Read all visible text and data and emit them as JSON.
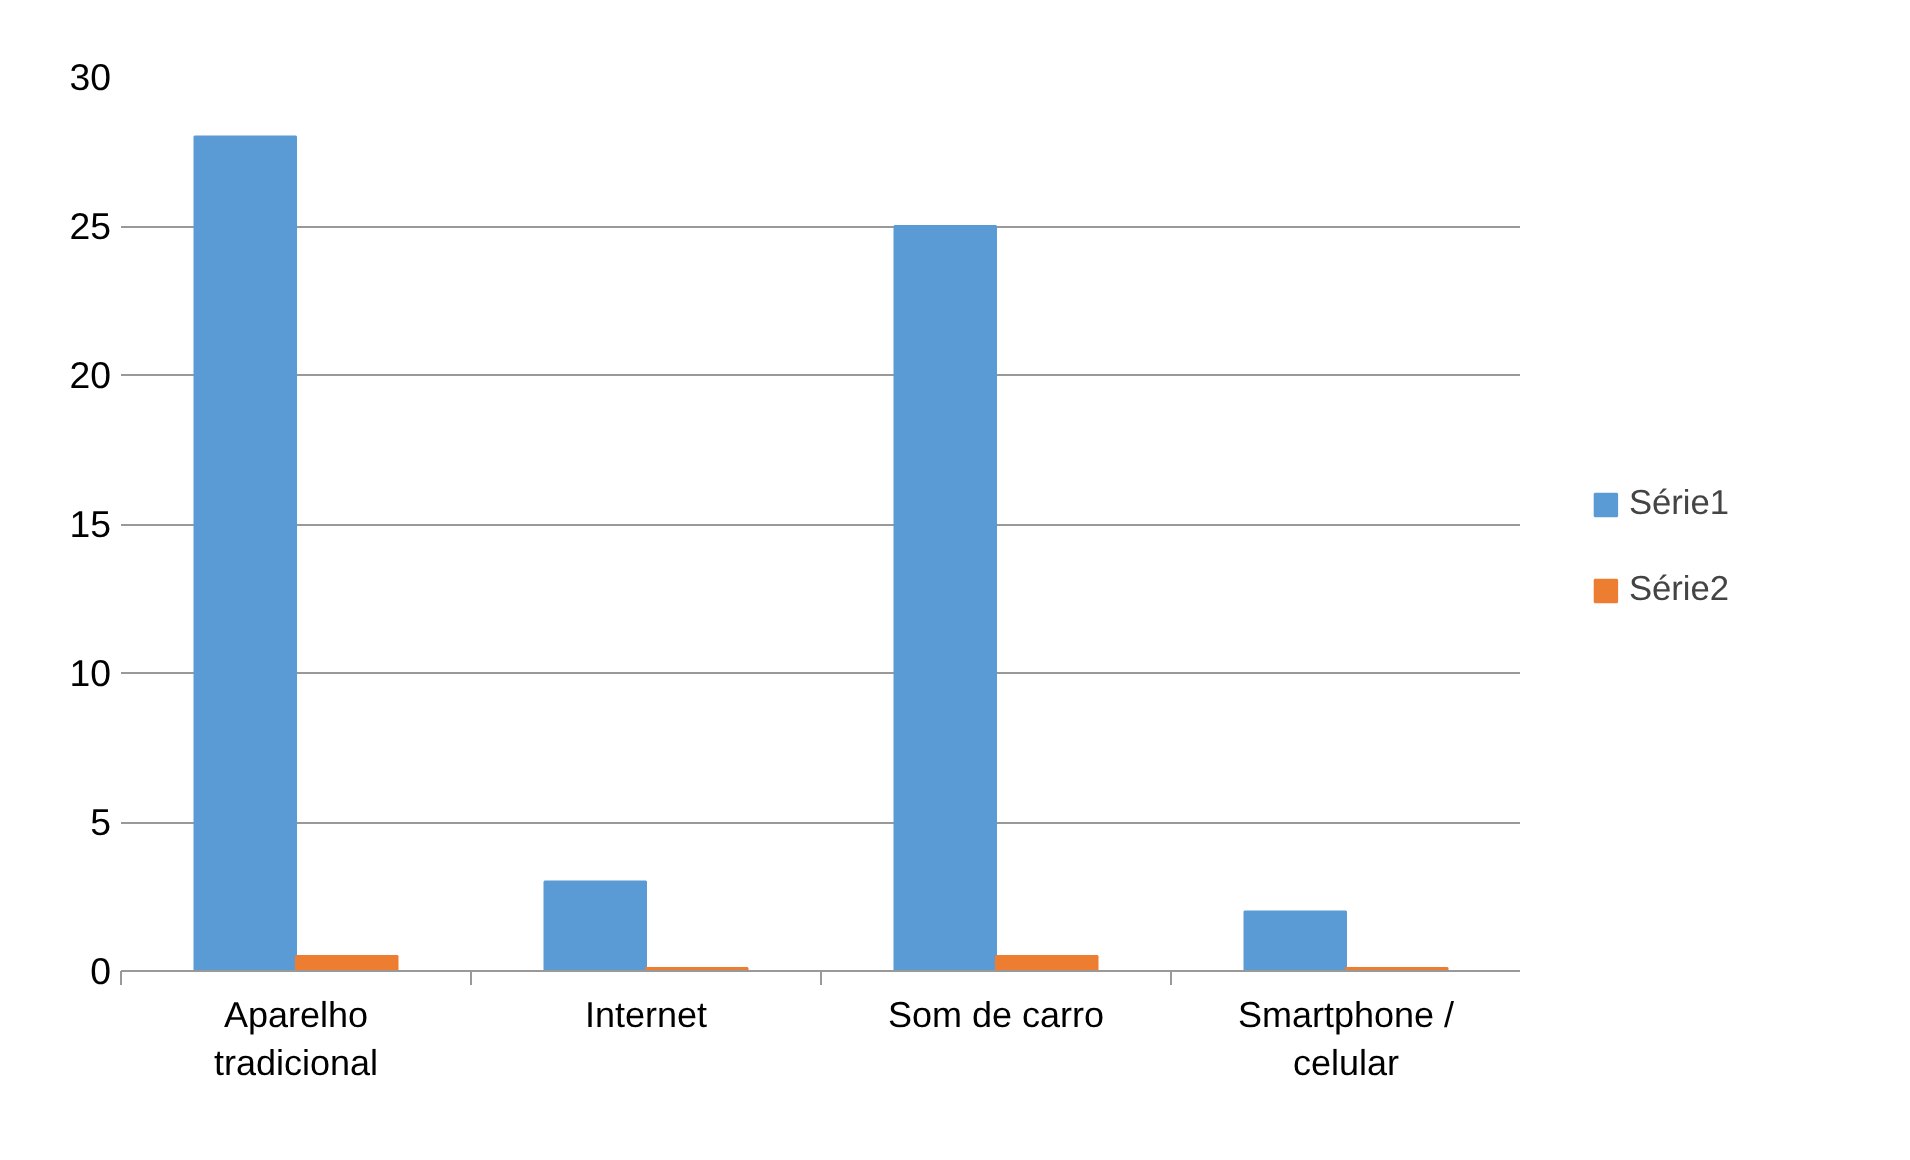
{
  "chart_data": {
    "type": "bar",
    "categories": [
      "Aparelho tradicional",
      "Internet",
      "Som de carro",
      "Smartphone / celular"
    ],
    "series": [
      {
        "name": "Série1",
        "color": "#5b9bd5",
        "values": [
          28,
          3,
          25,
          2
        ]
      },
      {
        "name": "Série2",
        "color": "#ed7d31",
        "values": [
          0.5,
          0.1,
          0.5,
          0.1
        ]
      }
    ],
    "ylim": [
      0,
      30
    ],
    "yticks": [
      0,
      5,
      10,
      15,
      20,
      25,
      30
    ],
    "grid": "y",
    "legend": "right"
  }
}
